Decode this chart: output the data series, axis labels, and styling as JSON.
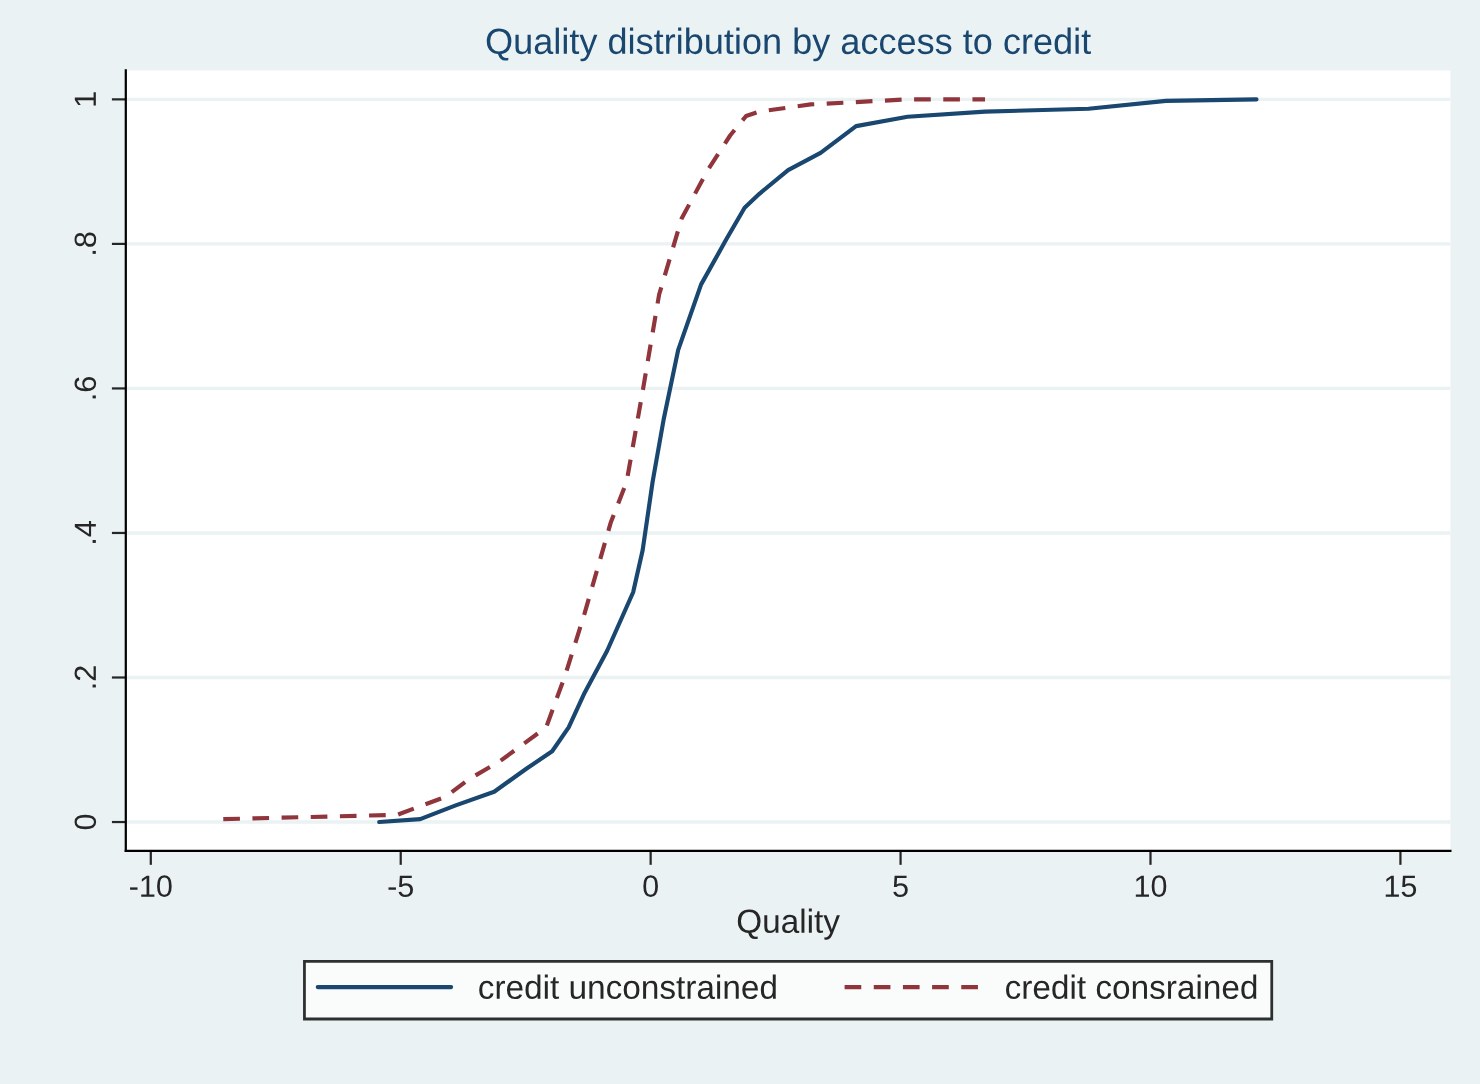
{
  "chart_data": {
    "type": "line",
    "title": "Quality distribution by access to credit",
    "xlabel": "Quality",
    "xlim": [
      -10.5,
      16
    ],
    "xticks": [
      -10,
      -5,
      0,
      5,
      10,
      15
    ],
    "ylim": [
      -0.04,
      1.04
    ],
    "yticks": [
      {
        "value": 0,
        "label": "0"
      },
      {
        "value": 0.2,
        "label": ".2"
      },
      {
        "value": 0.4,
        "label": ".4"
      },
      {
        "value": 0.6,
        "label": ".6"
      },
      {
        "value": 0.8,
        "label": ".8"
      },
      {
        "value": 1,
        "label": "1"
      }
    ],
    "grid": "y",
    "legend": "bottom",
    "marker": "none",
    "series": [
      {
        "name": "credit unconstrained",
        "color": "#1a476f",
        "line_style": "solid",
        "x": [
          -5.43,
          -4.61,
          -3.9,
          -3.13,
          -2.48,
          -1.97,
          -1.64,
          -1.32,
          -0.87,
          -0.35,
          -0.16,
          0.04,
          0.26,
          0.55,
          1.01,
          1.52,
          1.88,
          2.17,
          2.75,
          3.4,
          4.11,
          5.14,
          6.69,
          8.76,
          10.31,
          12.12
        ],
        "values": [
          0,
          0.004,
          0.023,
          0.042,
          0.074,
          0.098,
          0.131,
          0.179,
          0.237,
          0.318,
          0.376,
          0.471,
          0.557,
          0.653,
          0.744,
          0.807,
          0.85,
          0.869,
          0.902,
          0.926,
          0.963,
          0.976,
          0.983,
          0.987,
          0.998,
          1.0
        ]
      },
      {
        "name": "credit consrained",
        "color": "#90353b",
        "line_style": "dashed",
        "x": [
          -8.55,
          -5.07,
          -4.1,
          -3.64,
          -3.0,
          -2.09,
          -1.71,
          -1.32,
          -0.8,
          -0.48,
          -0.16,
          0.17,
          0.62,
          1.14,
          1.59,
          1.91,
          2.17,
          3.2,
          5.14,
          6.69
        ],
        "values": [
          0.004,
          0.01,
          0.035,
          0.059,
          0.085,
          0.131,
          0.203,
          0.289,
          0.414,
          0.471,
          0.596,
          0.73,
          0.835,
          0.902,
          0.95,
          0.977,
          0.983,
          0.993,
          1.0,
          1.0
        ]
      }
    ]
  }
}
